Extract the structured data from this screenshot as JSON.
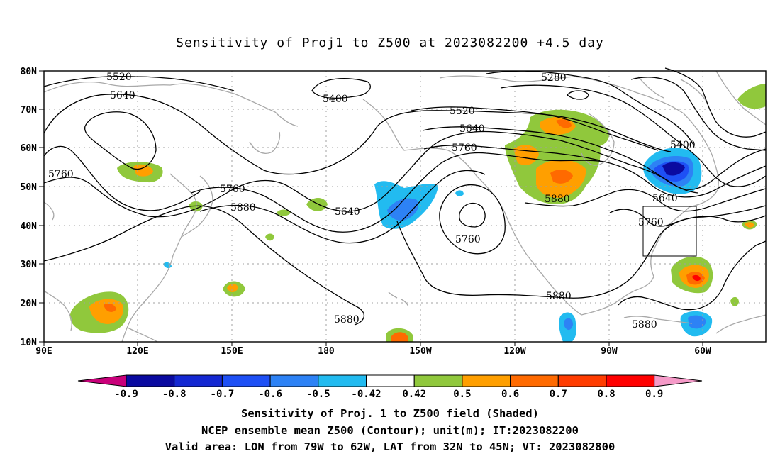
{
  "title": "Sensitivity of Proj1 to Z500 at 2023082200 +4.5 day",
  "map": {
    "lat_labels": [
      "80N",
      "70N",
      "60N",
      "50N",
      "40N",
      "30N",
      "20N",
      "10N"
    ],
    "lon_labels": [
      "90E",
      "120E",
      "150E",
      "180",
      "150W",
      "120W",
      "90W",
      "60W"
    ],
    "contour_labels": [
      {
        "text": "5520",
        "name": "contour-label-5520-west"
      },
      {
        "text": "5640",
        "name": "contour-label-5640-west"
      },
      {
        "text": "5760",
        "name": "contour-label-5760-west"
      },
      {
        "text": "5400",
        "name": "contour-label-5400-north-pacific"
      },
      {
        "text": "5760",
        "name": "contour-label-5760-japan"
      },
      {
        "text": "5880",
        "name": "contour-label-5880-japan"
      },
      {
        "text": "5640",
        "name": "contour-label-5640-pacific"
      },
      {
        "text": "5520",
        "name": "contour-label-5520-alaska"
      },
      {
        "text": "5640",
        "name": "contour-label-5640-alaska"
      },
      {
        "text": "5760",
        "name": "contour-label-5760-alaska"
      },
      {
        "text": "5760",
        "name": "contour-label-5760-cutoff-low"
      },
      {
        "text": "5880",
        "name": "contour-label-5880-plains"
      },
      {
        "text": "5280",
        "name": "contour-label-5280-arctic"
      },
      {
        "text": "5400",
        "name": "contour-label-5400-labrador"
      },
      {
        "text": "5640",
        "name": "contour-label-5640-labrador"
      },
      {
        "text": "5760",
        "name": "contour-label-5760-east-coast"
      },
      {
        "text": "5880",
        "name": "contour-label-5880-mexico"
      },
      {
        "text": "5880",
        "name": "contour-label-5880-caribbean"
      },
      {
        "text": "5880",
        "name": "contour-label-5880-hawaii"
      }
    ],
    "valid_area": {
      "lon_range": [
        "79W",
        "62W"
      ],
      "lat_range": [
        "32N",
        "45N"
      ]
    }
  },
  "colorbar": {
    "labels": [
      "-0.9",
      "-0.8",
      "-0.7",
      "-0.6",
      "-0.5",
      "-0.42",
      "0.42",
      "0.5",
      "0.6",
      "0.7",
      "0.8",
      "0.9"
    ],
    "colors": {
      "below_-0.9": "#c9007a",
      "-0.9_-0.8": "#0a0aa0",
      "-0.8_-0.7": "#1428d2",
      "-0.7_-0.6": "#1e50f5",
      "-0.6_-0.5": "#2d82f5",
      "-0.5_-0.42": "#22bbf0",
      "-0.42_0.42": "#ffffff",
      "0.42_0.5": "#90c83c",
      "0.5_0.6": "#ff9f00",
      "0.6_0.7": "#ff6a00",
      "0.7_0.8": "#ff3c00",
      "0.8_0.9": "#ff0000",
      "above_0.9": "#f59ac8"
    }
  },
  "captions": {
    "line1": "Sensitivity of Proj. 1 to Z500 field (Shaded)",
    "line2": "NCEP ensemble mean Z500 (Contour); unit(m); IT:2023082200",
    "line3": "Valid area: LON from 79W to 62W, LAT from 32N to 45N; VT: 2023082800"
  }
}
